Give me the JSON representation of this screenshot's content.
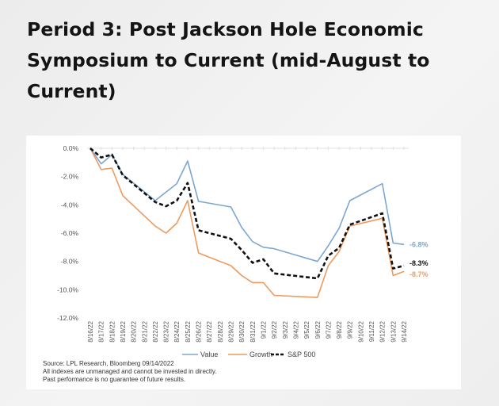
{
  "page": {
    "title": "Period 3: Post Jackson Hole Economic Symposium to Current (mid-August to Current)"
  },
  "chart_data": {
    "type": "line",
    "title": "",
    "xlabel": "",
    "ylabel": "",
    "ylim": [
      -12.0,
      0.0
    ],
    "y_ticks": [
      "0.0%",
      "-2.0%",
      "-4.0%",
      "-6.0%",
      "-8.0%",
      "-10.0%",
      "-12.0%"
    ],
    "y_tick_values": [
      0,
      -2,
      -4,
      -6,
      -8,
      -10,
      -12
    ],
    "grid": false,
    "legend_position": "bottom",
    "x_tick_labels": [
      "8/16/22",
      "8/17/22",
      "8/18/22",
      "8/19/22",
      "8/20/22",
      "8/21/22",
      "8/22/22",
      "8/23/22",
      "8/24/22",
      "8/25/22",
      "8/26/22",
      "8/27/22",
      "8/28/22",
      "8/29/22",
      "8/30/22",
      "8/31/22",
      "9/1/22",
      "9/2/22",
      "9/3/22",
      "9/4/22",
      "9/5/22",
      "9/6/22",
      "9/7/22",
      "9/8/22",
      "9/9/22",
      "9/10/22",
      "9/11/22",
      "9/12/22",
      "9/13/22",
      "9/14/22"
    ],
    "x": [
      "8/16/22",
      "8/17/22",
      "8/18/22",
      "8/19/22",
      "8/22/22",
      "8/23/22",
      "8/24/22",
      "8/25/22",
      "8/26/22",
      "8/29/22",
      "8/30/22",
      "8/31/22",
      "9/1/22",
      "9/2/22",
      "9/6/22",
      "9/7/22",
      "9/8/22",
      "9/9/22",
      "9/12/22",
      "9/13/22",
      "9/14/22"
    ],
    "series": [
      {
        "name": "Value",
        "color": "#7ba7d0",
        "style": "solid",
        "end_label": "-6.8%",
        "values": [
          0.0,
          -1.1,
          -0.45,
          -1.85,
          -3.7,
          -3.1,
          -2.5,
          -0.9,
          -3.75,
          -4.15,
          -5.6,
          -6.6,
          -7.0,
          -7.1,
          -8.0,
          -6.9,
          -5.65,
          -3.7,
          -2.5,
          -6.7,
          -6.8
        ]
      },
      {
        "name": "Growth",
        "color": "#ee9a5e",
        "style": "solid",
        "end_label": "-8.7%",
        "values": [
          0.0,
          -1.5,
          -1.4,
          -3.35,
          -5.5,
          -6.0,
          -5.3,
          -3.7,
          -7.4,
          -8.3,
          -9.0,
          -9.5,
          -9.5,
          -10.4,
          -10.55,
          -8.3,
          -7.3,
          -5.5,
          -4.95,
          -9.0,
          -8.7
        ]
      },
      {
        "name": "S&P 500",
        "color": "#111111",
        "style": "dashed",
        "end_label": "-8.3%",
        "values": [
          0.0,
          -0.65,
          -0.45,
          -1.9,
          -3.8,
          -4.1,
          -3.7,
          -2.45,
          -5.8,
          -6.4,
          -7.2,
          -8.1,
          -7.85,
          -8.85,
          -9.2,
          -7.6,
          -7.05,
          -5.4,
          -4.6,
          -8.5,
          -8.3
        ]
      }
    ]
  },
  "footnotes": [
    "Source: LPL Research, Bloomberg 09/14/2022",
    "All indexes are unmanaged and cannot be invested in directly.",
    "Past performance is no guarantee of future results."
  ]
}
